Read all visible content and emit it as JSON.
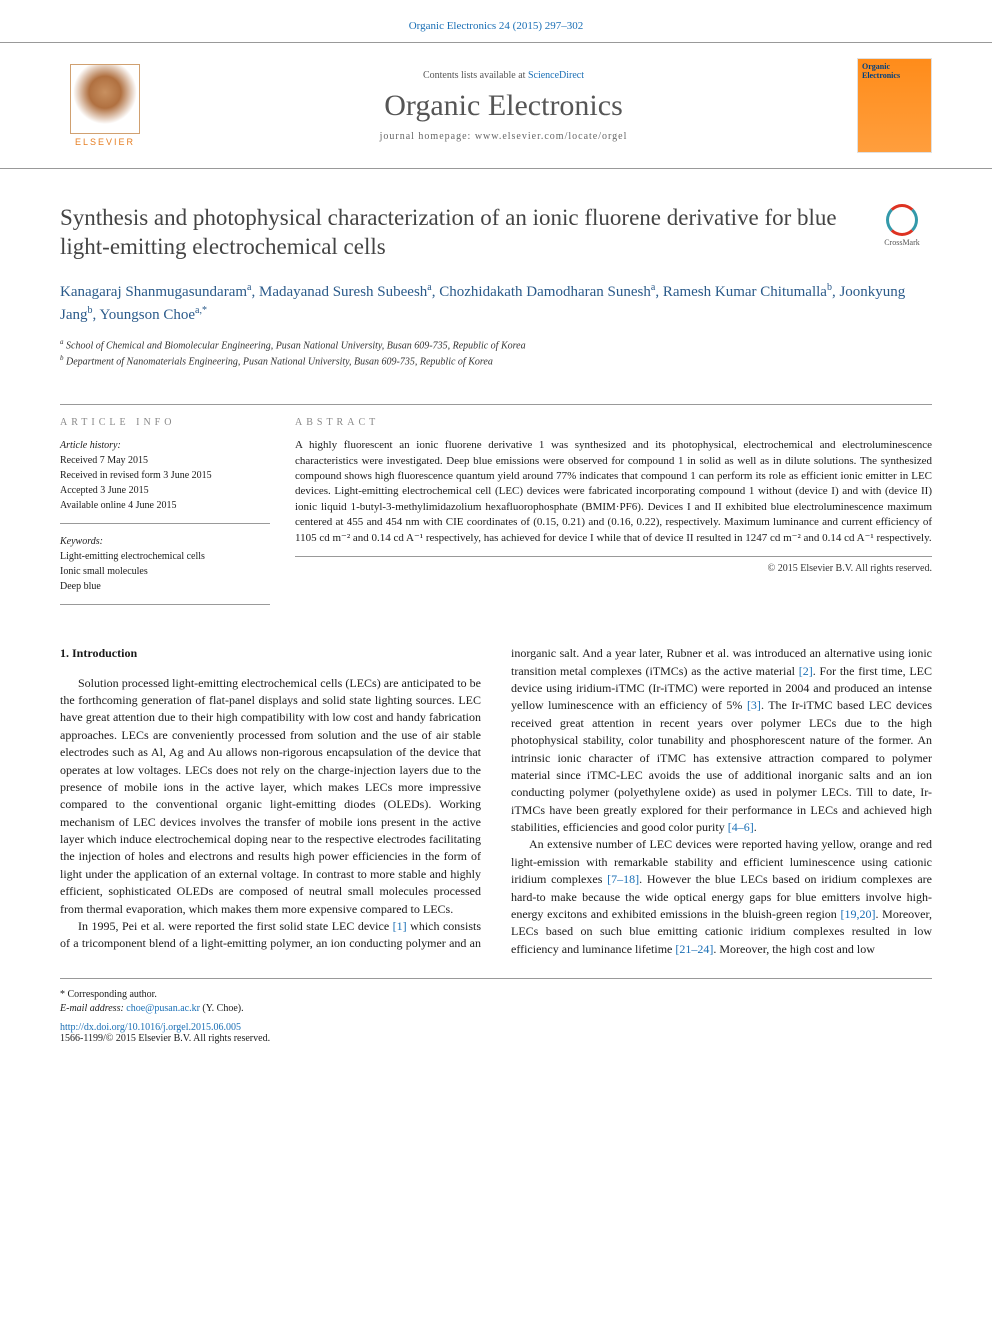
{
  "header": {
    "citation": "Organic Electronics 24 (2015) 297–302",
    "citation_color": "#1a6fb5"
  },
  "masthead": {
    "publisher_label": "ELSEVIER",
    "contents_prefix": "Contents lists available at ",
    "contents_link": "ScienceDirect",
    "journal_name": "Organic Electronics",
    "homepage_prefix": "journal homepage: ",
    "homepage_url": "www.elsevier.com/locate/orgel",
    "cover_text": "Organic Electronics"
  },
  "article": {
    "title": "Synthesis and photophysical characterization of an ionic fluorene derivative for blue light-emitting electrochemical cells",
    "crossmark_label": "CrossMark",
    "authors_html": "Kanagaraj Shanmugasundaram<sup>a</sup>, Madayanad Suresh Subeesh<sup>a</sup>, Chozhidakath Damodharan Sunesh<sup>a</sup>, Ramesh Kumar Chitumalla<sup>b</sup>, Joonkyung Jang<sup>b</sup>, Youngson Choe<sup>a,*</sup>",
    "affiliations": {
      "a": "School of Chemical and Biomolecular Engineering, Pusan National University, Busan 609-735, Republic of Korea",
      "b": "Department of Nanomaterials Engineering, Pusan National University, Busan 609-735, Republic of Korea"
    }
  },
  "info": {
    "label": "ARTICLE INFO",
    "history_label": "Article history:",
    "history": [
      "Received 7 May 2015",
      "Received in revised form 3 June 2015",
      "Accepted 3 June 2015",
      "Available online 4 June 2015"
    ],
    "keywords_label": "Keywords:",
    "keywords": [
      "Light-emitting electrochemical cells",
      "Ionic small molecules",
      "Deep blue"
    ]
  },
  "abstract": {
    "label": "ABSTRACT",
    "text": "A highly fluorescent an ionic fluorene derivative 1 was synthesized and its photophysical, electrochemical and electroluminescence characteristics were investigated. Deep blue emissions were observed for compound 1 in solid as well as in dilute solutions. The synthesized compound shows high fluorescence quantum yield around 77% indicates that compound 1 can perform its role as efficient ionic emitter in LEC devices. Light-emitting electrochemical cell (LEC) devices were fabricated incorporating compound 1 without (device I) and with (device II) ionic liquid 1-butyl-3-methylimidazolium hexafluorophosphate (BMIM·PF6). Devices I and II exhibited blue electroluminescence maximum centered at 455 and 454 nm with CIE coordinates of (0.15, 0.21) and (0.16, 0.22), respectively. Maximum luminance and current efficiency of 1105 cd m⁻² and 0.14 cd A⁻¹ respectively, has achieved for device I while that of device II resulted in 1247 cd m⁻² and 0.14 cd A⁻¹ respectively.",
    "copyright": "© 2015 Elsevier B.V. All rights reserved."
  },
  "body": {
    "section1_heading": "1. Introduction",
    "para1": "Solution processed light-emitting electrochemical cells (LECs) are anticipated to be the forthcoming generation of flat-panel displays and solid state lighting sources. LEC have great attention due to their high compatibility with low cost and handy fabrication approaches. LECs are conveniently processed from solution and the use of air stable electrodes such as Al, Ag and Au allows non-rigorous encapsulation of the device that operates at low voltages. LECs does not rely on the charge-injection layers due to the presence of mobile ions in the active layer, which makes LECs more impressive compared to the conventional organic light-emitting diodes (OLEDs). Working mechanism of LEC devices involves the transfer of mobile ions present in the active layer which induce electrochemical doping near to the respective electrodes facilitating the injection of holes and electrons and results high power efficiencies in the form of light under the application of an external voltage. In contrast to more stable and highly efficient, sophisticated OLEDs are composed of neutral small molecules processed from thermal evaporation, which makes them more expensive compared to LECs.",
    "para2_pre": "In 1995, Pei et al. were reported the first solid state LEC device ",
    "ref1": "[1]",
    "para2_mid1": " which consists of a tricomponent blend of a light-emitting polymer, an ion conducting polymer and an inorganic salt. And a year later, Rubner et al. was introduced an alternative using ionic transition metal complexes (iTMCs) as the active material ",
    "ref2": "[2]",
    "para2_mid2": ". For the first time, LEC device using iridium-iTMC (Ir-iTMC) were reported in 2004 and produced an intense yellow luminescence with an efficiency of 5% ",
    "ref3": "[3]",
    "para2_mid3": ". The Ir-iTMC based LEC devices received great attention in recent years over polymer LECs due to the high photophysical stability, color tunability and phosphorescent nature of the former. An intrinsic ionic character of iTMC has extensive attraction compared to polymer material since iTMC-LEC avoids the use of additional inorganic salts and an ion conducting polymer (polyethylene oxide) as used in polymer LECs. Till to date, Ir-iTMCs have been greatly explored for their performance in LECs and achieved high stabilities, efficiencies and good color purity ",
    "ref4": "[4–6]",
    "para2_end": ".",
    "para3_pre": "An extensive number of LEC devices were reported having yellow, orange and red light-emission with remarkable stability and efficient luminescence using cationic iridium complexes ",
    "ref5": "[7–18]",
    "para3_mid1": ". However the blue LECs based on iridium complexes are hard-to make because the wide optical energy gaps for blue emitters involve high-energy excitons and exhibited emissions in the bluish-green region ",
    "ref6": "[19,20]",
    "para3_mid2": ". Moreover, LECs based on such blue emitting cationic iridium complexes resulted in low efficiency and luminance lifetime ",
    "ref7": "[21–24]",
    "para3_end": ". Moreover, the high cost and low"
  },
  "footer": {
    "corr_label": "* Corresponding author.",
    "email_label": "E-mail address: ",
    "email": "choe@pusan.ac.kr",
    "email_suffix": " (Y. Choe).",
    "doi_url": "http://dx.doi.org/10.1016/j.orgel.2015.06.005",
    "issn_copyright": "1566-1199/© 2015 Elsevier B.V. All rights reserved."
  },
  "colors": {
    "link": "#1a6fb5",
    "text": "#1a1a1a",
    "title": "#444",
    "author": "#2a5a8a",
    "orange": "#e67e22",
    "border": "#999"
  }
}
